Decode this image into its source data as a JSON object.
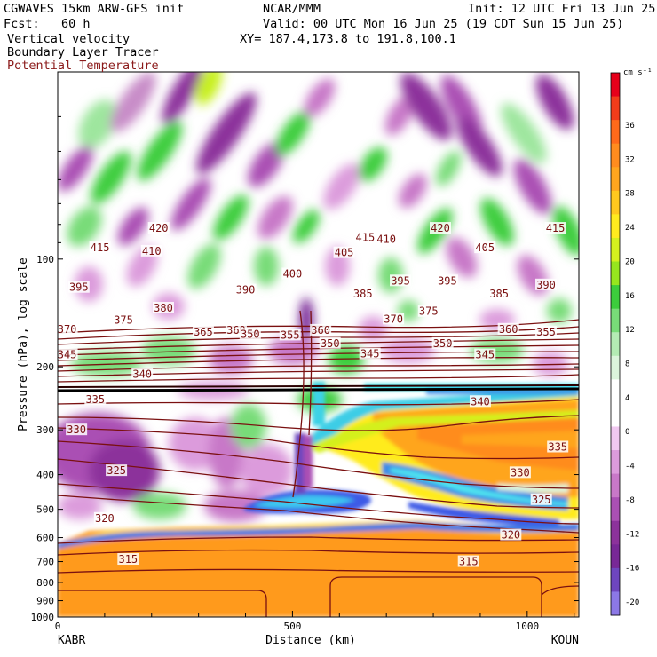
{
  "header": {
    "model": "CGWAVES 15km ARW-GFS init",
    "org": "NCAR/MMM",
    "init": "Init: 12 UTC Fri 13 Jun 25",
    "fcst": "Fcst:   60 h",
    "valid": "Valid: 00 UTC Mon 16 Jun 25 (19 CDT Sun 15 Jun 25)",
    "field1": "Vertical velocity",
    "xy": "XY= 187.4,173.8 to 191.8,100.1",
    "field2": "Boundary Layer Tracer",
    "field3": "Potential Temperature"
  },
  "colors": {
    "theta": "#7a1010",
    "field3": "#8b1a1a"
  },
  "chart_data": {
    "type": "heatmap",
    "xlabel": "Distance (km)",
    "ylabel": "Pressure (hPa), log scale",
    "x_ticks": [
      "0",
      "500",
      "1000"
    ],
    "y_ticks": [
      "100",
      "200",
      "300",
      "400",
      "500",
      "600",
      "700",
      "800",
      "900",
      "1000"
    ],
    "x_endpoints": [
      "KABR",
      "KOUN"
    ],
    "xlim": [
      0,
      1110
    ],
    "ylim": [
      1000,
      30
    ],
    "colorbar": {
      "unit": "cm s⁻¹",
      "labels": [
        "36",
        "32",
        "28",
        "24",
        "20",
        "16",
        "12",
        "8",
        "4",
        "0",
        "-4",
        "-8",
        "-12",
        "-16",
        "-20"
      ],
      "colors": [
        "#e6001a",
        "#f23c1a",
        "#ff6a1a",
        "#ff8c1e",
        "#ffa51e",
        "#ffc81e",
        "#ffeb1e",
        "#d4f01e",
        "#96e61e",
        "#3ccd3c",
        "#78dc78",
        "#b4ebb4",
        "#dcf5dc",
        "#ffffff",
        "#ffffff",
        "#f0c8f0",
        "#dc9bdc",
        "#c878c8",
        "#aa50b4",
        "#8c329b",
        "#782896",
        "#6e46be",
        "#8c78e6"
      ]
    },
    "theta_labels": [
      {
        "value": "420",
        "x": 215,
        "p": 82
      },
      {
        "value": "420",
        "x": 815,
        "p": 82
      },
      {
        "value": "415",
        "x": 655,
        "p": 87
      },
      {
        "value": "415",
        "x": 1060,
        "p": 82
      },
      {
        "value": "415",
        "x": 90,
        "p": 93
      },
      {
        "value": "410",
        "x": 200,
        "p": 95
      },
      {
        "value": "410",
        "x": 700,
        "p": 88
      },
      {
        "value": "405",
        "x": 610,
        "p": 96
      },
      {
        "value": "405",
        "x": 910,
        "p": 93
      },
      {
        "value": "400",
        "x": 500,
        "p": 110
      },
      {
        "value": "395",
        "x": 45,
        "p": 120
      },
      {
        "value": "395",
        "x": 730,
        "p": 115
      },
      {
        "value": "395",
        "x": 830,
        "p": 115
      },
      {
        "value": "390",
        "x": 400,
        "p": 122
      },
      {
        "value": "390",
        "x": 1040,
        "p": 118
      },
      {
        "value": "385",
        "x": 650,
        "p": 125
      },
      {
        "value": "385",
        "x": 940,
        "p": 125
      },
      {
        "value": "380",
        "x": 225,
        "p": 137
      },
      {
        "value": "375",
        "x": 140,
        "p": 148
      },
      {
        "value": "375",
        "x": 790,
        "p": 140
      },
      {
        "value": "370",
        "x": 20,
        "p": 157
      },
      {
        "value": "370",
        "x": 715,
        "p": 147
      },
      {
        "value": "365",
        "x": 310,
        "p": 160
      },
      {
        "value": "360",
        "x": 380,
        "p": 158
      },
      {
        "value": "360",
        "x": 560,
        "p": 158
      },
      {
        "value": "360",
        "x": 960,
        "p": 157
      },
      {
        "value": "355",
        "x": 495,
        "p": 163
      },
      {
        "value": "355",
        "x": 1040,
        "p": 160
      },
      {
        "value": "350",
        "x": 410,
        "p": 162
      },
      {
        "value": "350",
        "x": 580,
        "p": 172
      },
      {
        "value": "350",
        "x": 820,
        "p": 172
      },
      {
        "value": "345",
        "x": 20,
        "p": 185
      },
      {
        "value": "345",
        "x": 665,
        "p": 184
      },
      {
        "value": "345",
        "x": 910,
        "p": 185
      },
      {
        "value": "340",
        "x": 180,
        "p": 210
      },
      {
        "value": "340",
        "x": 900,
        "p": 250
      },
      {
        "value": "335",
        "x": 80,
        "p": 247
      },
      {
        "value": "335",
        "x": 1065,
        "p": 335
      },
      {
        "value": "330",
        "x": 40,
        "p": 300
      },
      {
        "value": "330",
        "x": 985,
        "p": 395
      },
      {
        "value": "325",
        "x": 125,
        "p": 390
      },
      {
        "value": "325",
        "x": 1030,
        "p": 470
      },
      {
        "value": "320",
        "x": 100,
        "p": 530
      },
      {
        "value": "320",
        "x": 965,
        "p": 590
      },
      {
        "value": "315",
        "x": 150,
        "p": 690
      },
      {
        "value": "315",
        "x": 875,
        "p": 700
      }
    ]
  }
}
